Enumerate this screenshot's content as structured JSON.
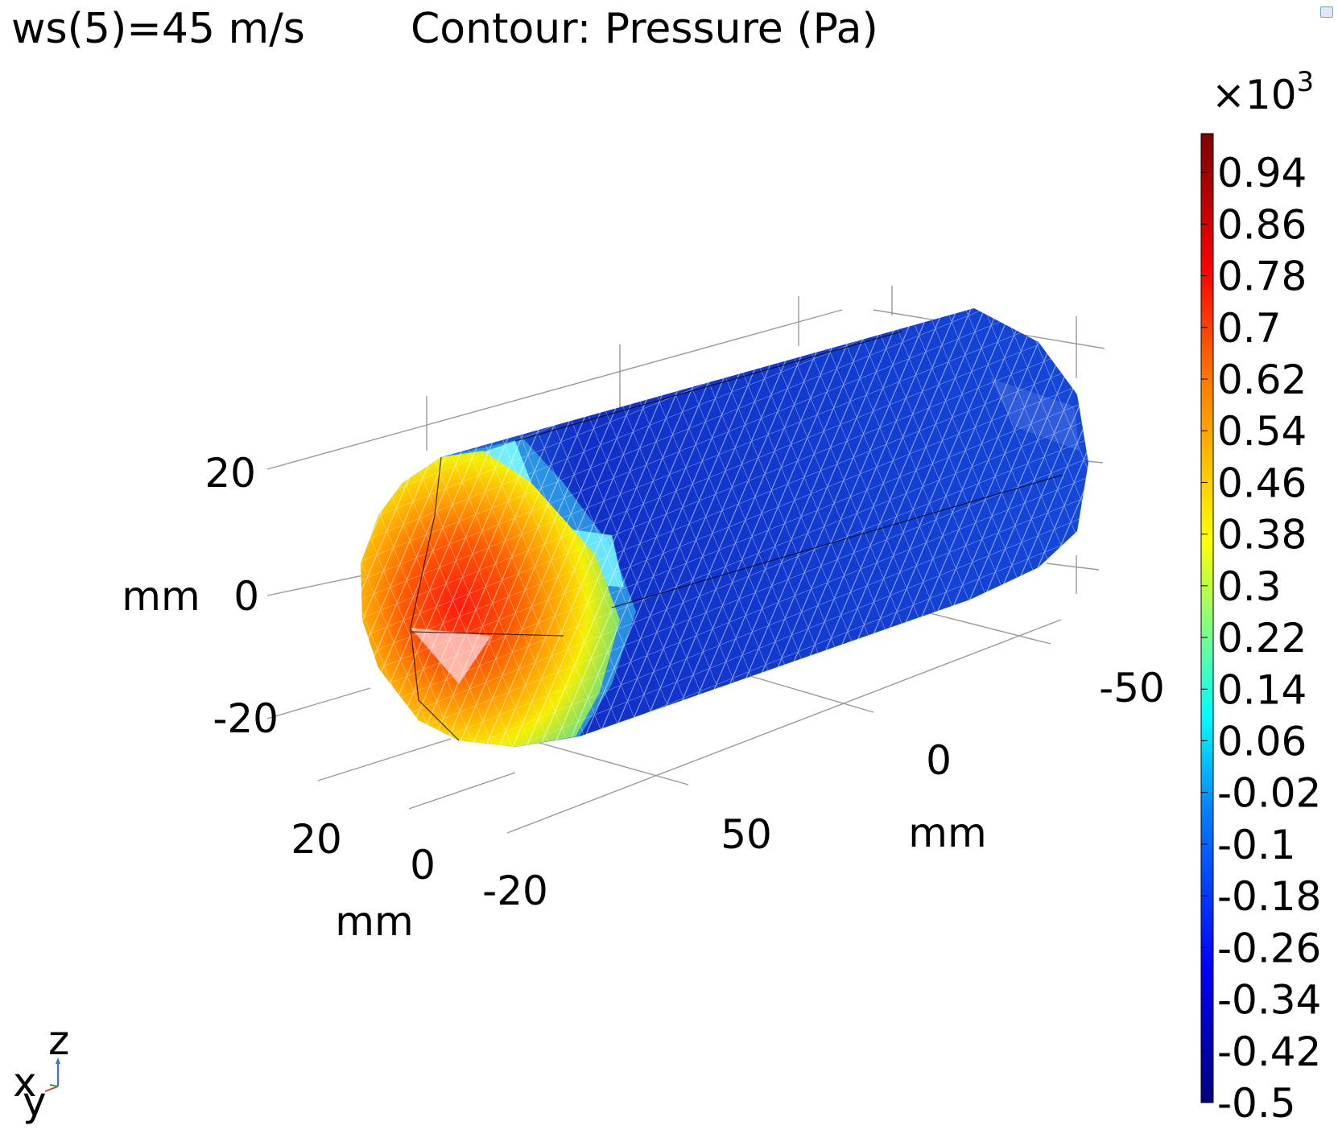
{
  "header": {
    "parameter_label": "ws(5)=45 m/s",
    "plot_title": "Contour: Pressure (Pa)"
  },
  "icons": [
    "corner-window-icon",
    "axis-triad-icon"
  ],
  "chart_data": {
    "type": "surface-3d",
    "title": "Contour: Pressure (Pa)",
    "subtitle": "ws(5)=45 m/s",
    "quantity": "Pressure (Pa)",
    "colormap": "rainbow",
    "axes": {
      "x": {
        "unit_label": "mm",
        "ticks": [
          "20",
          "0",
          "-20"
        ]
      },
      "y": {
        "unit_label": "mm",
        "ticks": [
          "50",
          "0",
          "-50"
        ]
      },
      "z": {
        "unit_label": "mm",
        "ticks": [
          "20",
          "0",
          "-20"
        ]
      }
    },
    "triad_labels": [
      "z",
      "x",
      "y"
    ],
    "colorbar": {
      "multiplier": "×10",
      "exponent": "3",
      "range": [
        -0.5,
        1.0
      ],
      "ticks": [
        "0.94",
        "0.86",
        "0.78",
        "0.7",
        "0.62",
        "0.54",
        "0.46",
        "0.38",
        "0.3",
        "0.22",
        "0.14",
        "0.06",
        "-0.02",
        "-0.1",
        "-0.18",
        "-0.26",
        "-0.34",
        "-0.42",
        "-0.5"
      ],
      "colors": [
        "#7f0000",
        "#ff0000",
        "#ff7f00",
        "#ffff00",
        "#00ffff",
        "#007fff",
        "#0000ff",
        "#00007f"
      ]
    }
  }
}
